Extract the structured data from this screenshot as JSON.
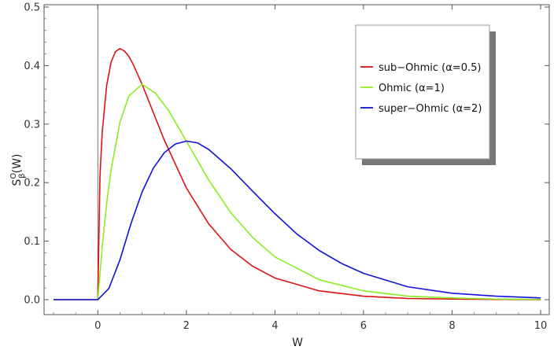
{
  "chart_data": {
    "type": "line",
    "title": "",
    "xlabel": "W",
    "ylabel": "S",
    "ylabel_sup": "O",
    "ylabel_sub": "β",
    "ylabel_arg": "(W)",
    "xlim": [
      -1,
      10
    ],
    "ylim": [
      0,
      0.5
    ],
    "xticks": [
      0,
      2,
      4,
      6,
      8,
      10
    ],
    "xtick_labels": [
      "0",
      "2",
      "4",
      "6",
      "8",
      "10"
    ],
    "yticks": [
      0.0,
      0.1,
      0.2,
      0.3,
      0.4,
      0.5
    ],
    "ytick_labels": [
      "0.0",
      "0.1",
      "0.2",
      "0.3",
      "0.4",
      "0.5"
    ],
    "grid": false,
    "legend_position": "top-right",
    "series": [
      {
        "name": "sub−Ohmic (α=0.5)",
        "color": "#dd1111",
        "x": [
          -1,
          0,
          0.05,
          0.1,
          0.2,
          0.3,
          0.4,
          0.5,
          0.6,
          0.7,
          0.8,
          1.0,
          1.2,
          1.5,
          2.0,
          2.5,
          3.0,
          3.5,
          4.0,
          5.0,
          6.0,
          7.0,
          8.0,
          9.0,
          10.0
        ],
        "y": [
          0,
          0,
          0.213,
          0.286,
          0.366,
          0.406,
          0.424,
          0.429,
          0.425,
          0.416,
          0.402,
          0.368,
          0.33,
          0.273,
          0.191,
          0.13,
          0.086,
          0.057,
          0.037,
          0.015,
          0.006,
          0.002,
          0.001,
          0.0004,
          0.0001
        ]
      },
      {
        "name": "Ohmic (α=1)",
        "color": "#88ee22",
        "x": [
          -1,
          0,
          0.1,
          0.2,
          0.3,
          0.5,
          0.7,
          1.0,
          1.3,
          1.6,
          2.0,
          2.5,
          3.0,
          3.5,
          4.0,
          5.0,
          6.0,
          7.0,
          8.0,
          9.0,
          10.0
        ],
        "y": [
          0,
          0,
          0.09,
          0.164,
          0.222,
          0.303,
          0.348,
          0.368,
          0.353,
          0.323,
          0.271,
          0.205,
          0.149,
          0.106,
          0.073,
          0.034,
          0.015,
          0.006,
          0.003,
          0.001,
          0.0005
        ]
      },
      {
        "name": "super−Ohmic (α=2)",
        "color": "#1111dd",
        "x": [
          -1,
          0,
          0.25,
          0.5,
          0.75,
          1.0,
          1.25,
          1.5,
          1.75,
          2.0,
          2.25,
          2.5,
          3.0,
          3.5,
          4.0,
          4.5,
          5.0,
          5.5,
          6.0,
          7.0,
          8.0,
          9.0,
          10.0
        ],
        "y": [
          0,
          0,
          0.019,
          0.068,
          0.13,
          0.184,
          0.224,
          0.251,
          0.266,
          0.271,
          0.268,
          0.257,
          0.224,
          0.185,
          0.147,
          0.112,
          0.084,
          0.062,
          0.045,
          0.022,
          0.011,
          0.006,
          0.003
        ]
      }
    ]
  }
}
